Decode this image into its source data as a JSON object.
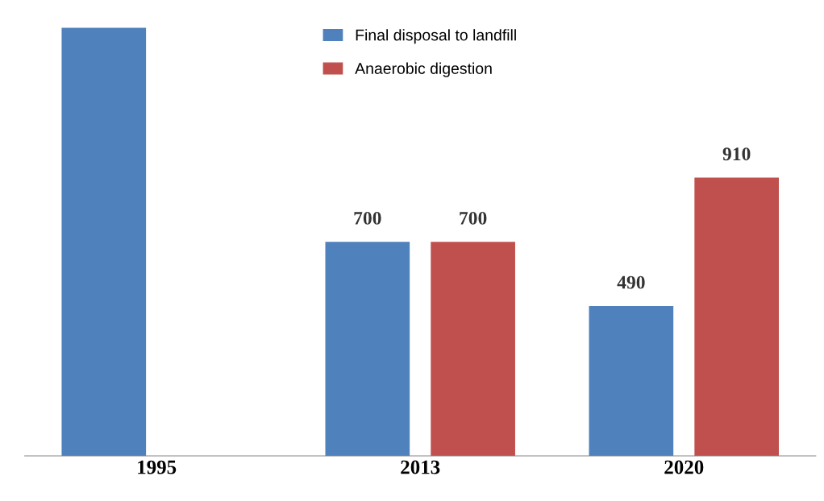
{
  "chart_data": {
    "type": "bar",
    "categories": [
      "1995",
      "2013",
      "2020"
    ],
    "series": [
      {
        "name": "Final disposal to landfill",
        "color": "#4f81bd",
        "values": [
          1400,
          700,
          490
        ],
        "value_labels": [
          null,
          "700",
          "490"
        ]
      },
      {
        "name": "Anaerobic digestion",
        "color": "#c0504d",
        "values": [
          null,
          700,
          910
        ],
        "value_labels": [
          null,
          "700",
          "910"
        ]
      }
    ],
    "tick_labels": "x",
    "legend": "top",
    "grid": false
  }
}
